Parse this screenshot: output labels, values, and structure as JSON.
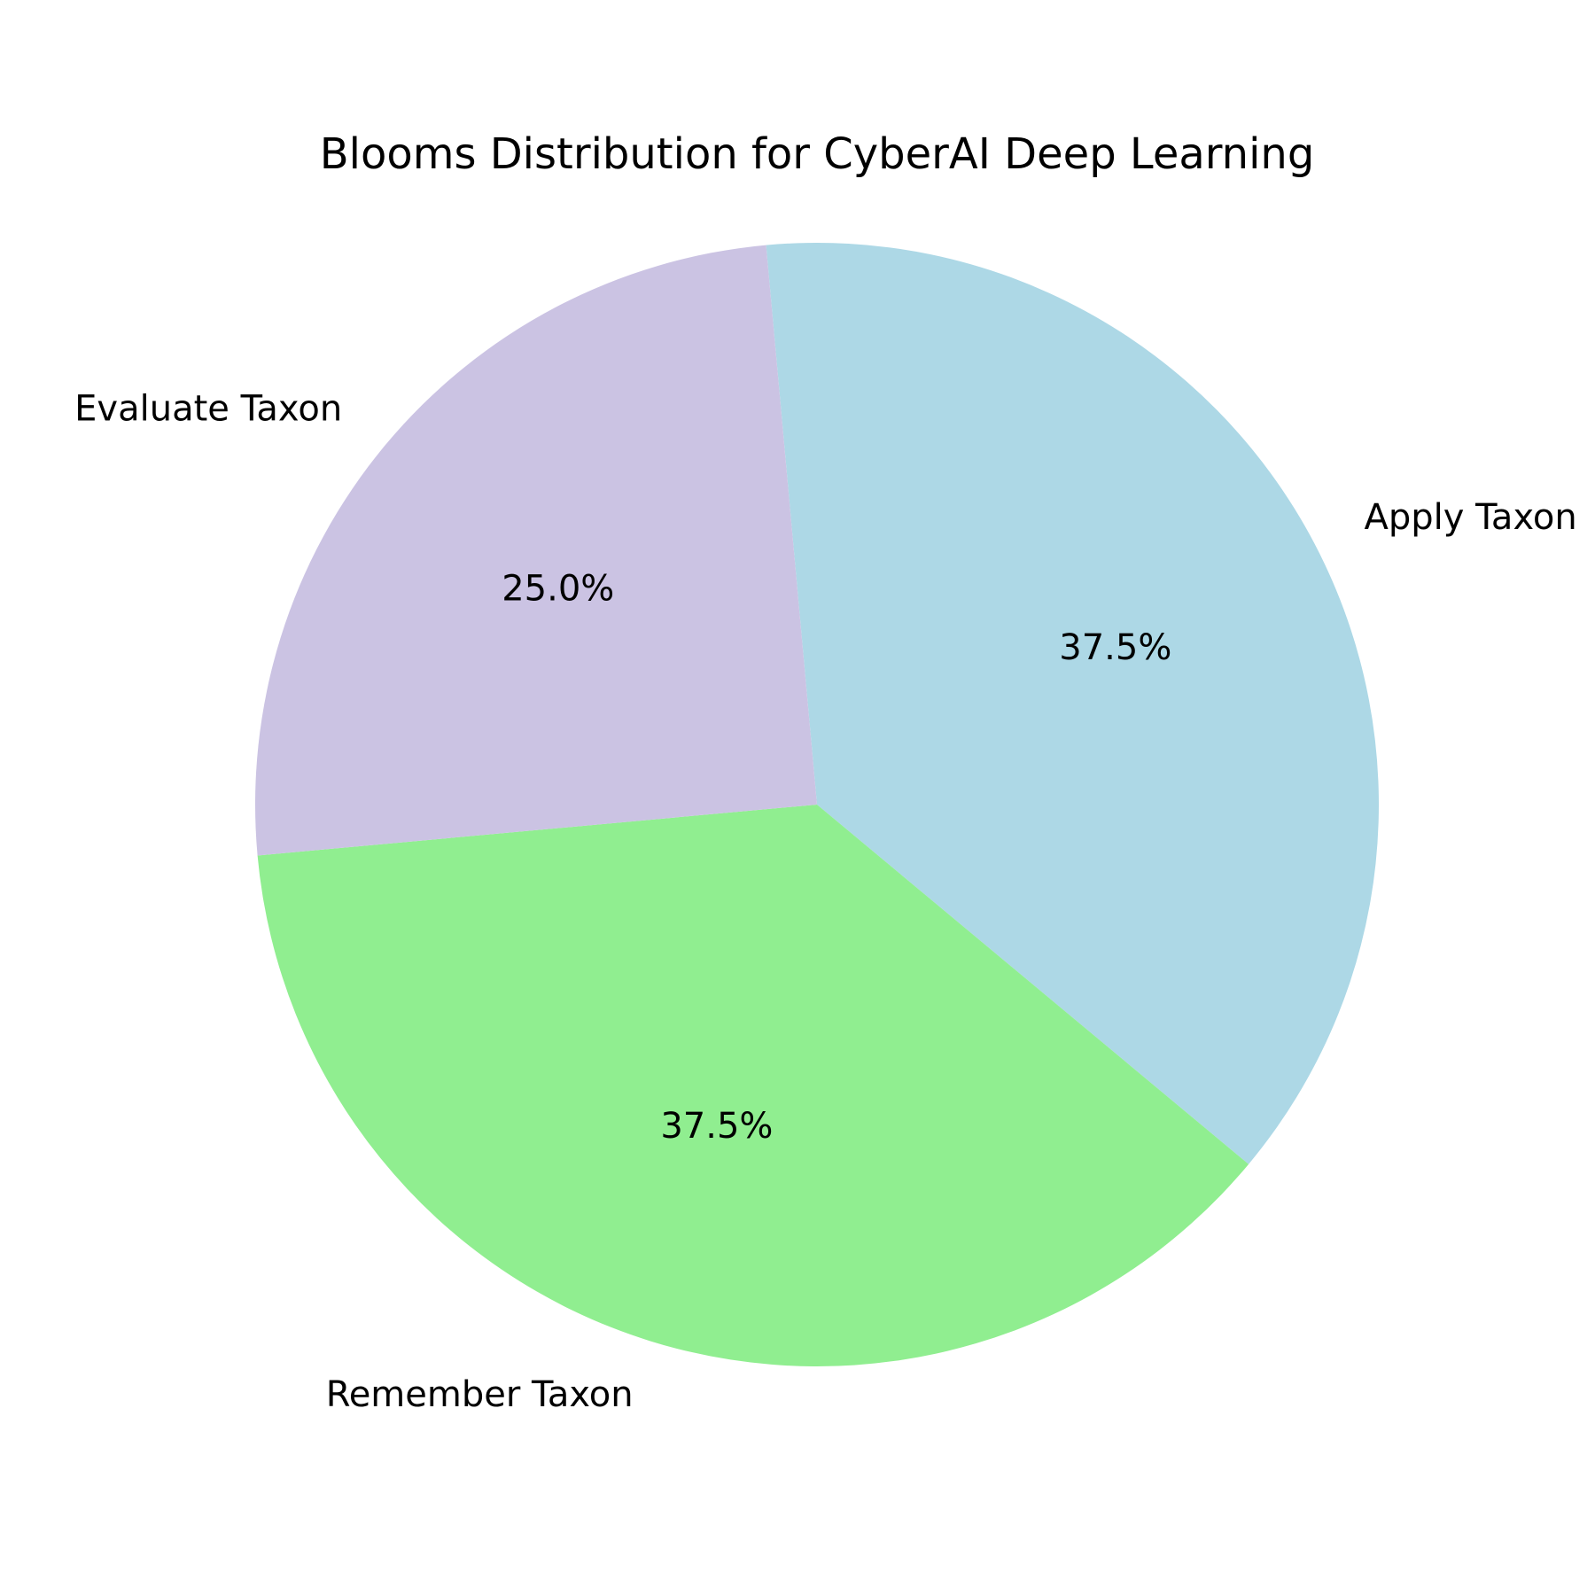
{
  "chart_data": {
    "type": "pie",
    "title": "Blooms Distribution for CyberAI Deep Learning",
    "categories": [
      "Apply Taxon",
      "Remember Taxon",
      "Evaluate Taxon"
    ],
    "values": [
      37.5,
      37.5,
      25.0
    ],
    "value_labels": [
      "37.5%",
      "37.5%",
      "25.0%"
    ],
    "colors": [
      "#add8e6",
      "#90ee90",
      "#cbc3e3"
    ],
    "legend": "none"
  }
}
